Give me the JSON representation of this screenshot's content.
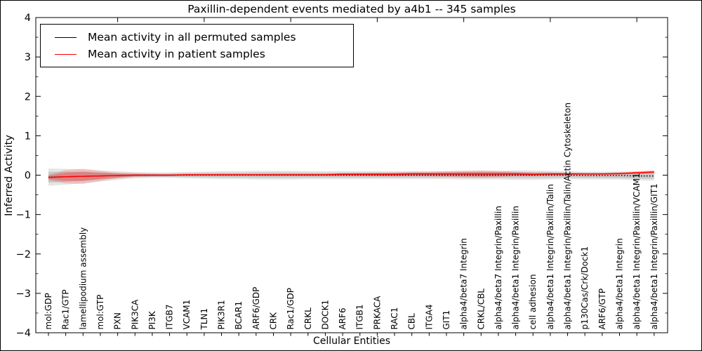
{
  "chart_data": {
    "type": "line",
    "title": "Paxillin-dependent events mediated by a4b1 -- 345 samples",
    "xlabel": "Cellular Entities",
    "ylabel": "Inferred Activity",
    "ylim": [
      -4,
      4
    ],
    "yticks": [
      -4,
      -3,
      -2,
      -1,
      0,
      1,
      2,
      3,
      4
    ],
    "ytick_labels": [
      "−4",
      "−3",
      "−2",
      "−1",
      "0",
      "1",
      "2",
      "3",
      "4"
    ],
    "y_minor_step": 0.5,
    "grid": false,
    "legend_position": "upper left",
    "x_top_tick_indices": [
      4,
      9,
      14,
      19,
      24,
      29,
      34
    ],
    "categories": [
      "mol:GDP",
      "Rac1/GTP",
      "lamellipodium assembly",
      "mol:GTP",
      "PXN",
      "PIK3CA",
      "PI3K",
      "ITGB7",
      "VCAM1",
      "TLN1",
      "PIK3R1",
      "BCAR1",
      "ARF6/GDP",
      "CRK",
      "Rac1/GDP",
      "CRKL",
      "DOCK1",
      "ARF6",
      "ITGB1",
      "PRKACA",
      "RAC1",
      "CBL",
      "ITGA4",
      "GIT1",
      "alpha4/beta7 Integrin",
      "CRKL/CBL",
      "alpha4/beta7 Integrin/Paxillin",
      "alpha4/beta1 Integrin/Paxillin",
      "cell adhesion",
      "alpha4/beta1 Integrin/Paxillin/Talin",
      "alpha4/beta1 Integrin/Paxillin/Talin/Actin Cytoskeleton",
      "p130Cas/Crk/Dock1",
      "ARF6/GTP",
      "alpha4/beta1 Integrin",
      "alpha4/beta1 Integrin/Paxillin/VCAM1",
      "alpha4/beta1 Integrin/Paxillin/GIT1"
    ],
    "series": [
      {
        "name": "Mean activity in all permuted samples",
        "color": "#000000",
        "line_style": "dotted",
        "legend_line_style": "solid",
        "values": [
          -0.05,
          -0.04,
          -0.03,
          -0.02,
          -0.01,
          0,
          0,
          0,
          0,
          0,
          0,
          0,
          0,
          0,
          0,
          0,
          0,
          0,
          0,
          0,
          0,
          0,
          0,
          0,
          0,
          0,
          0,
          0,
          0,
          0,
          0,
          -0.01,
          -0.01,
          -0.01,
          -0.02,
          -0.02
        ],
        "band_halfwidth": [
          0.22,
          0.2,
          0.18,
          0.14,
          0.11,
          0.08,
          0.07,
          0.07,
          0.08,
          0.09,
          0.1,
          0.1,
          0.11,
          0.11,
          0.11,
          0.1,
          0.1,
          0.1,
          0.1,
          0.1,
          0.1,
          0.1,
          0.1,
          0.1,
          0.11,
          0.11,
          0.11,
          0.12,
          0.12,
          0.11,
          0.1,
          0.1,
          0.1,
          0.1,
          0.11,
          0.12
        ],
        "band_color_rgb": "0,0,0"
      },
      {
        "name": "Mean activity in patient samples",
        "color": "#ff0000",
        "line_style": "solid",
        "legend_line_style": "solid",
        "values": [
          -0.06,
          -0.04,
          -0.03,
          -0.02,
          -0.01,
          0,
          0,
          0,
          0.01,
          0.01,
          0.01,
          0.01,
          0.01,
          0.01,
          0.01,
          0.01,
          0.01,
          0.02,
          0.02,
          0.02,
          0.02,
          0.03,
          0.03,
          0.03,
          0.03,
          0.03,
          0.03,
          0.03,
          0.02,
          0.03,
          0.03,
          0.03,
          0.03,
          0.04,
          0.06,
          0.08
        ],
        "band_halfwidth": [
          0.07,
          0.17,
          0.19,
          0.13,
          0.07,
          0.04,
          0.03,
          0.025,
          0.025,
          0.025,
          0.025,
          0.025,
          0.025,
          0.03,
          0.03,
          0.03,
          0.03,
          0.035,
          0.04,
          0.045,
          0.05,
          0.055,
          0.06,
          0.07,
          0.08,
          0.09,
          0.08,
          0.06,
          0.05,
          0.04,
          0.035,
          0.03,
          0.03,
          0.035,
          0.04,
          0.045
        ],
        "band_color_rgb": "255,0,0"
      }
    ]
  }
}
